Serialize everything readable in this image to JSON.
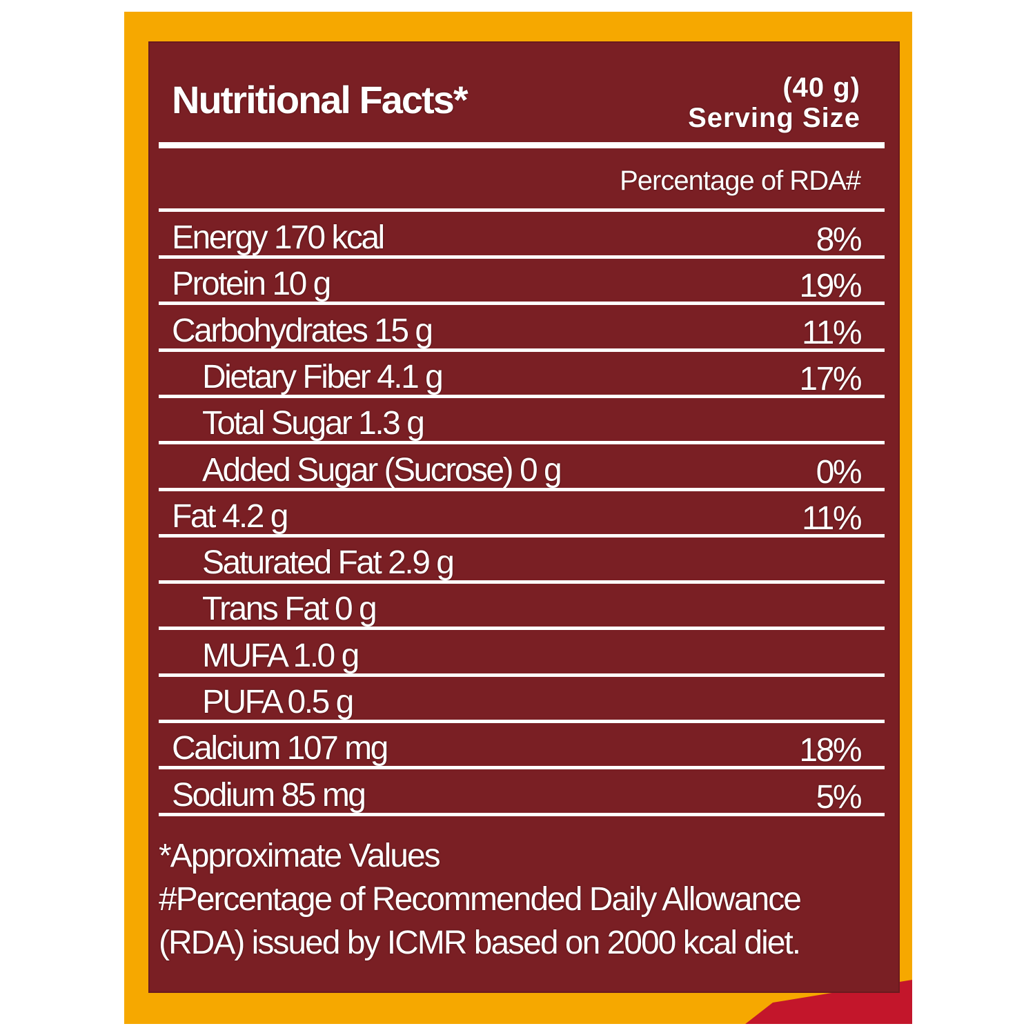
{
  "header": {
    "title": "Nutritional Facts*",
    "serving_amount": "(40 g)",
    "serving_label": "Serving Size",
    "rda_column_label": "Percentage of RDA#"
  },
  "rows": [
    {
      "name": "Energy 170 kcal",
      "pct": "8%",
      "indent": false
    },
    {
      "name": "Protein 10 g",
      "pct": "19%",
      "indent": false
    },
    {
      "name": "Carbohydrates 15 g",
      "pct": "11%",
      "indent": false
    },
    {
      "name": "Dietary Fiber 4.1 g",
      "pct": "17%",
      "indent": true
    },
    {
      "name": "Total Sugar 1.3 g",
      "pct": "",
      "indent": true
    },
    {
      "name": "Added Sugar (Sucrose) 0 g",
      "pct": "0%",
      "indent": true
    },
    {
      "name": "Fat 4.2 g",
      "pct": "11%",
      "indent": false
    },
    {
      "name": "Saturated Fat 2.9 g",
      "pct": "",
      "indent": true
    },
    {
      "name": "Trans Fat 0 g",
      "pct": "",
      "indent": true
    },
    {
      "name": "MUFA 1.0 g",
      "pct": "",
      "indent": true
    },
    {
      "name": "PUFA 0.5 g",
      "pct": "",
      "indent": true
    },
    {
      "name": "Calcium 107 mg",
      "pct": "18%",
      "indent": false
    },
    {
      "name": "Sodium 85 mg",
      "pct": "5%",
      "indent": false
    }
  ],
  "footnotes": {
    "approx": "*Approximate Values",
    "rda_line1": "#Percentage of Recommended Daily Allowance",
    "rda_line2": "(RDA) issued by ICMR based on 2000 kcal diet."
  },
  "colors": {
    "frame": "#f6a800",
    "panel": "#7a1f24",
    "accent_red": "#c3162b",
    "text": "#ffffff"
  }
}
